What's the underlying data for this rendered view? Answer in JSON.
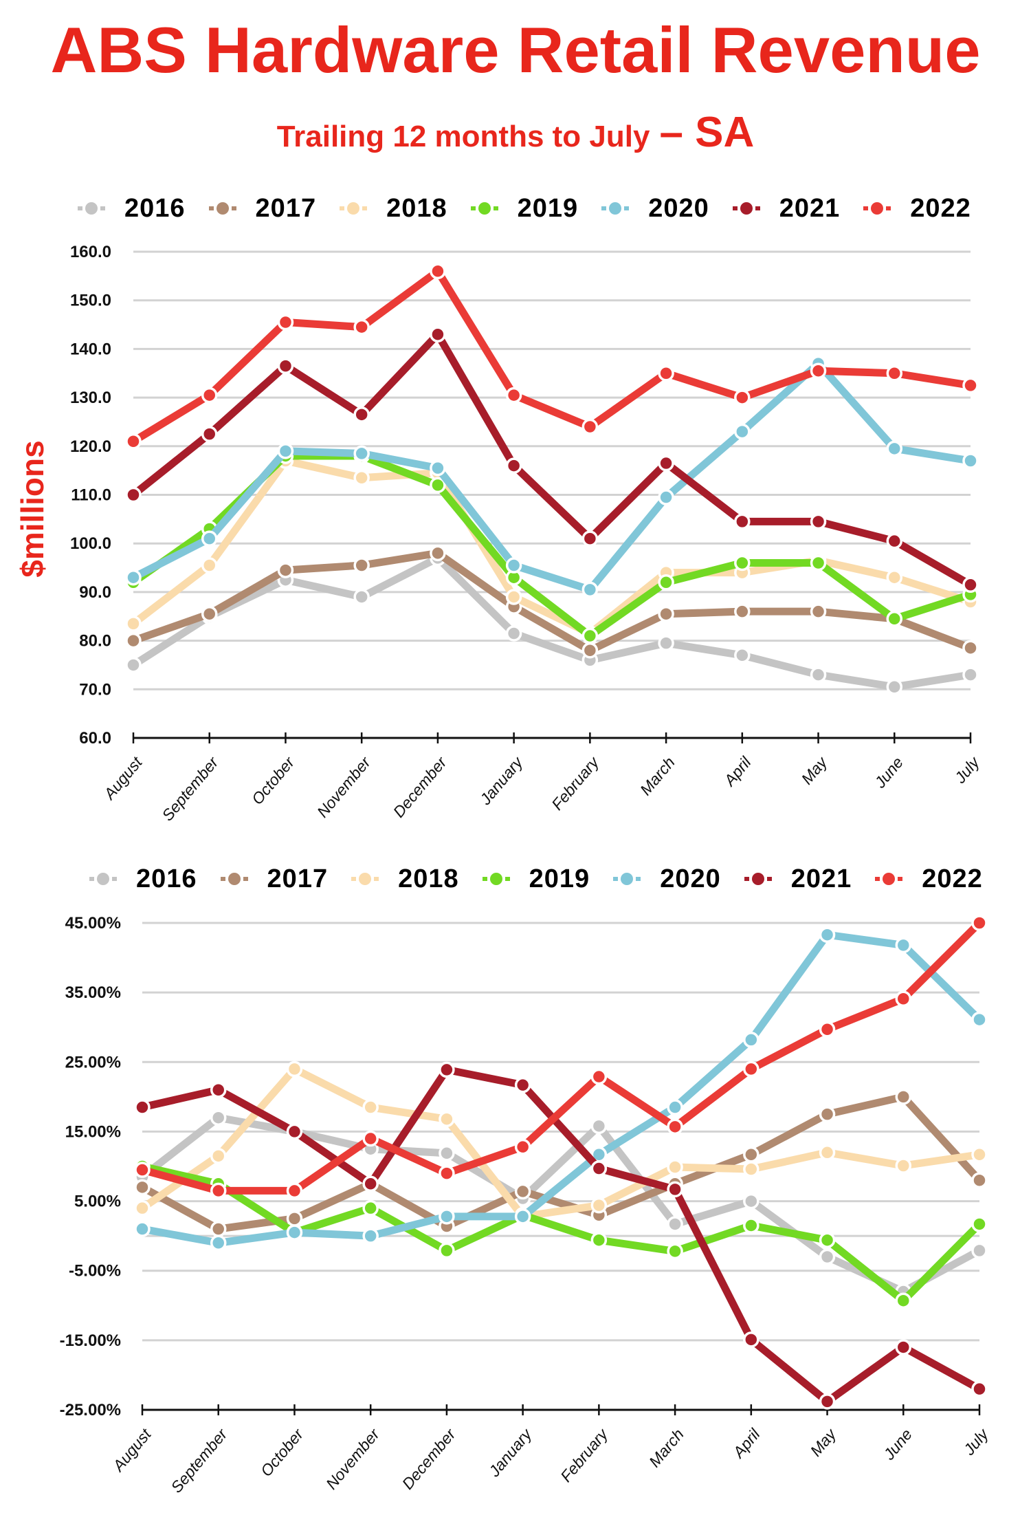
{
  "header": {
    "title": "ABS Hardware Retail Revenue",
    "subtitle": "Trailing 12 months to July",
    "region": "– SA"
  },
  "legend": [
    {
      "name": "2016",
      "color": "#c4c4c4"
    },
    {
      "name": "2017",
      "color": "#b08a70"
    },
    {
      "name": "2018",
      "color": "#fadbab"
    },
    {
      "name": "2019",
      "color": "#72d923"
    },
    {
      "name": "2020",
      "color": "#80c6d8"
    },
    {
      "name": "2021",
      "color": "#a71d2a"
    },
    {
      "name": "2022",
      "color": "#ea3b36"
    }
  ],
  "chart_data": [
    {
      "type": "line",
      "title": "Trailing 12 months revenue",
      "xlabel": "",
      "ylabel": "$millions",
      "ylim": [
        60,
        160
      ],
      "yticks": [
        "160.0",
        "150.0",
        "140.0",
        "130.0",
        "120.0",
        "110.0",
        "100.0",
        "90.0",
        "80.0",
        "70.0",
        "60.0"
      ],
      "ytick_values": [
        160,
        150,
        140,
        130,
        120,
        110,
        100,
        90,
        80,
        70,
        60
      ],
      "grid": true,
      "legend_position": "top",
      "categories": [
        "August",
        "September",
        "October",
        "November",
        "December",
        "January",
        "February",
        "March",
        "April",
        "May",
        "June",
        "July"
      ],
      "series": [
        {
          "name": "2016",
          "values": [
            75.0,
            85.0,
            92.5,
            89.0,
            97.0,
            81.5,
            76.0,
            79.5,
            77.0,
            73.0,
            70.5,
            73.0
          ]
        },
        {
          "name": "2017",
          "values": [
            80.0,
            85.5,
            94.5,
            95.5,
            98.0,
            87.0,
            78.0,
            85.5,
            86.0,
            86.0,
            84.5,
            78.5
          ]
        },
        {
          "name": "2018",
          "values": [
            83.5,
            95.5,
            117.0,
            113.5,
            114.5,
            89.0,
            81.5,
            94.0,
            94.0,
            96.5,
            93.0,
            88.0
          ]
        },
        {
          "name": "2019",
          "values": [
            92.0,
            103.0,
            118.0,
            118.0,
            112.0,
            93.0,
            81.0,
            92.0,
            96.0,
            96.0,
            84.5,
            89.5
          ]
        },
        {
          "name": "2020",
          "values": [
            93.0,
            101.0,
            119.0,
            118.5,
            115.5,
            95.5,
            90.5,
            109.5,
            123.0,
            137.0,
            119.5,
            117.0
          ]
        },
        {
          "name": "2021",
          "values": [
            110.0,
            122.5,
            136.5,
            126.5,
            143.0,
            116.0,
            101.0,
            116.5,
            104.5,
            104.5,
            100.5,
            91.5
          ]
        },
        {
          "name": "2022",
          "values": [
            121.0,
            130.5,
            145.5,
            144.5,
            156.0,
            130.5,
            124.0,
            135.0,
            130.0,
            135.5,
            135.0,
            132.5
          ]
        }
      ]
    },
    {
      "type": "line",
      "title": "Year-on-year change",
      "xlabel": "",
      "ylabel": "",
      "ylim": [
        -25,
        45
      ],
      "yticks": [
        "45.00%",
        "35.00%",
        "25.00%",
        "15.00%",
        "5.00%",
        "-5.00%",
        "-15.00%",
        "-25.00%"
      ],
      "ytick_values": [
        45,
        35,
        25,
        15,
        5,
        -5,
        -15,
        -25
      ],
      "grid": true,
      "legend_position": "top",
      "categories": [
        "August",
        "September",
        "October",
        "November",
        "December",
        "January",
        "February",
        "March",
        "April",
        "May",
        "June",
        "July"
      ],
      "series": [
        {
          "name": "2016",
          "values": [
            8.5,
            17.0,
            15.0,
            12.5,
            11.9,
            5.4,
            15.8,
            1.7,
            5.0,
            -3.0,
            -8.0,
            -2.1
          ]
        },
        {
          "name": "2017",
          "values": [
            7.0,
            1.0,
            2.5,
            7.5,
            1.4,
            6.4,
            3.0,
            7.5,
            11.7,
            17.5,
            20.0,
            8.0
          ]
        },
        {
          "name": "2018",
          "values": [
            4.0,
            11.5,
            24.0,
            18.5,
            16.8,
            2.8,
            4.4,
            9.9,
            9.6,
            12.0,
            10.1,
            11.7
          ]
        },
        {
          "name": "2019",
          "values": [
            10.0,
            7.5,
            0.5,
            4.0,
            -2.1,
            3.0,
            -0.6,
            -2.2,
            1.5,
            -0.6,
            -9.3,
            1.7
          ]
        },
        {
          "name": "2020",
          "values": [
            1.0,
            -1.0,
            0.5,
            0.0,
            2.8,
            2.8,
            11.7,
            18.5,
            28.2,
            43.3,
            41.8,
            31.1
          ]
        },
        {
          "name": "2021",
          "values": [
            18.5,
            21.0,
            15.0,
            7.5,
            23.9,
            21.7,
            9.7,
            6.7,
            -14.9,
            -23.8,
            -16.0,
            -22.0
          ]
        },
        {
          "name": "2022",
          "values": [
            9.5,
            6.5,
            6.5,
            14.0,
            9.0,
            12.8,
            22.9,
            15.7,
            24.0,
            29.7,
            34.1,
            45.0
          ]
        }
      ]
    }
  ]
}
